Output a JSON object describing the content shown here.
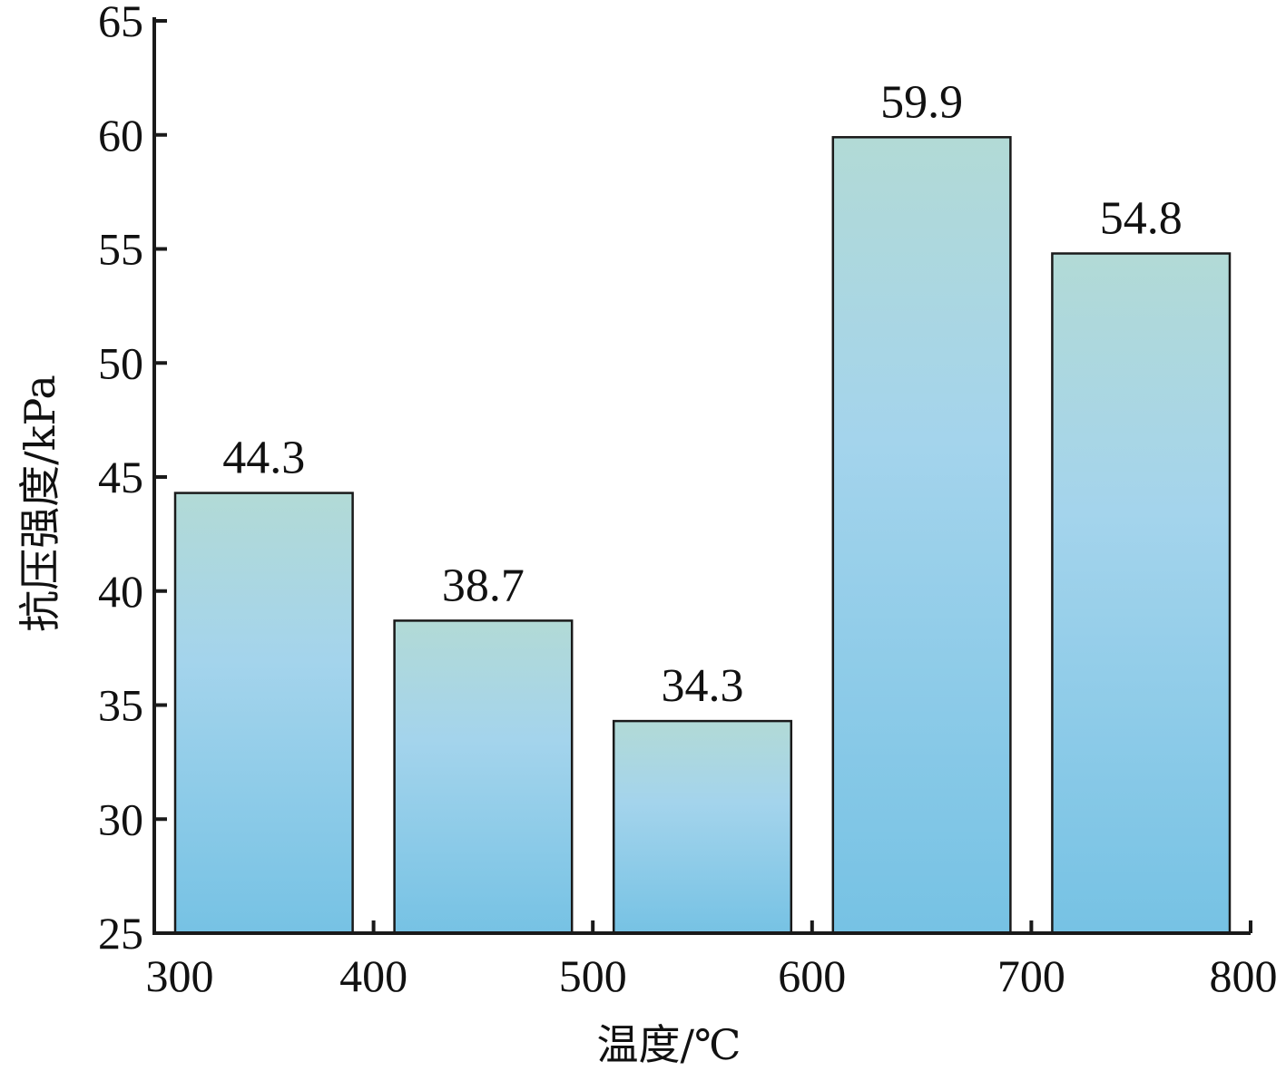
{
  "chart_data": {
    "type": "bar",
    "bars": [
      {
        "x_start": 300,
        "x_end": 400,
        "value": 44.3,
        "label": "44.3"
      },
      {
        "x_start": 400,
        "x_end": 500,
        "value": 38.7,
        "label": "38.7"
      },
      {
        "x_start": 500,
        "x_end": 600,
        "value": 34.3,
        "label": "34.3"
      },
      {
        "x_start": 600,
        "x_end": 700,
        "value": 59.9,
        "label": "59.9"
      },
      {
        "x_start": 700,
        "x_end": 800,
        "value": 54.8,
        "label": "54.8"
      }
    ],
    "x_ticks": [
      "300",
      "400",
      "500",
      "600",
      "700",
      "800"
    ],
    "y_ticks": [
      "25",
      "30",
      "35",
      "40",
      "45",
      "50",
      "55",
      "60",
      "65"
    ],
    "xlabel": "温度/℃",
    "ylabel": "抗压强度/kPa",
    "xlim": [
      300,
      800
    ],
    "ylim": [
      25,
      65
    ],
    "grid": false,
    "bar_gradient": {
      "top": "#b2dad6",
      "middle": "#a4d4ec",
      "bottom": "#76c2e4"
    }
  }
}
